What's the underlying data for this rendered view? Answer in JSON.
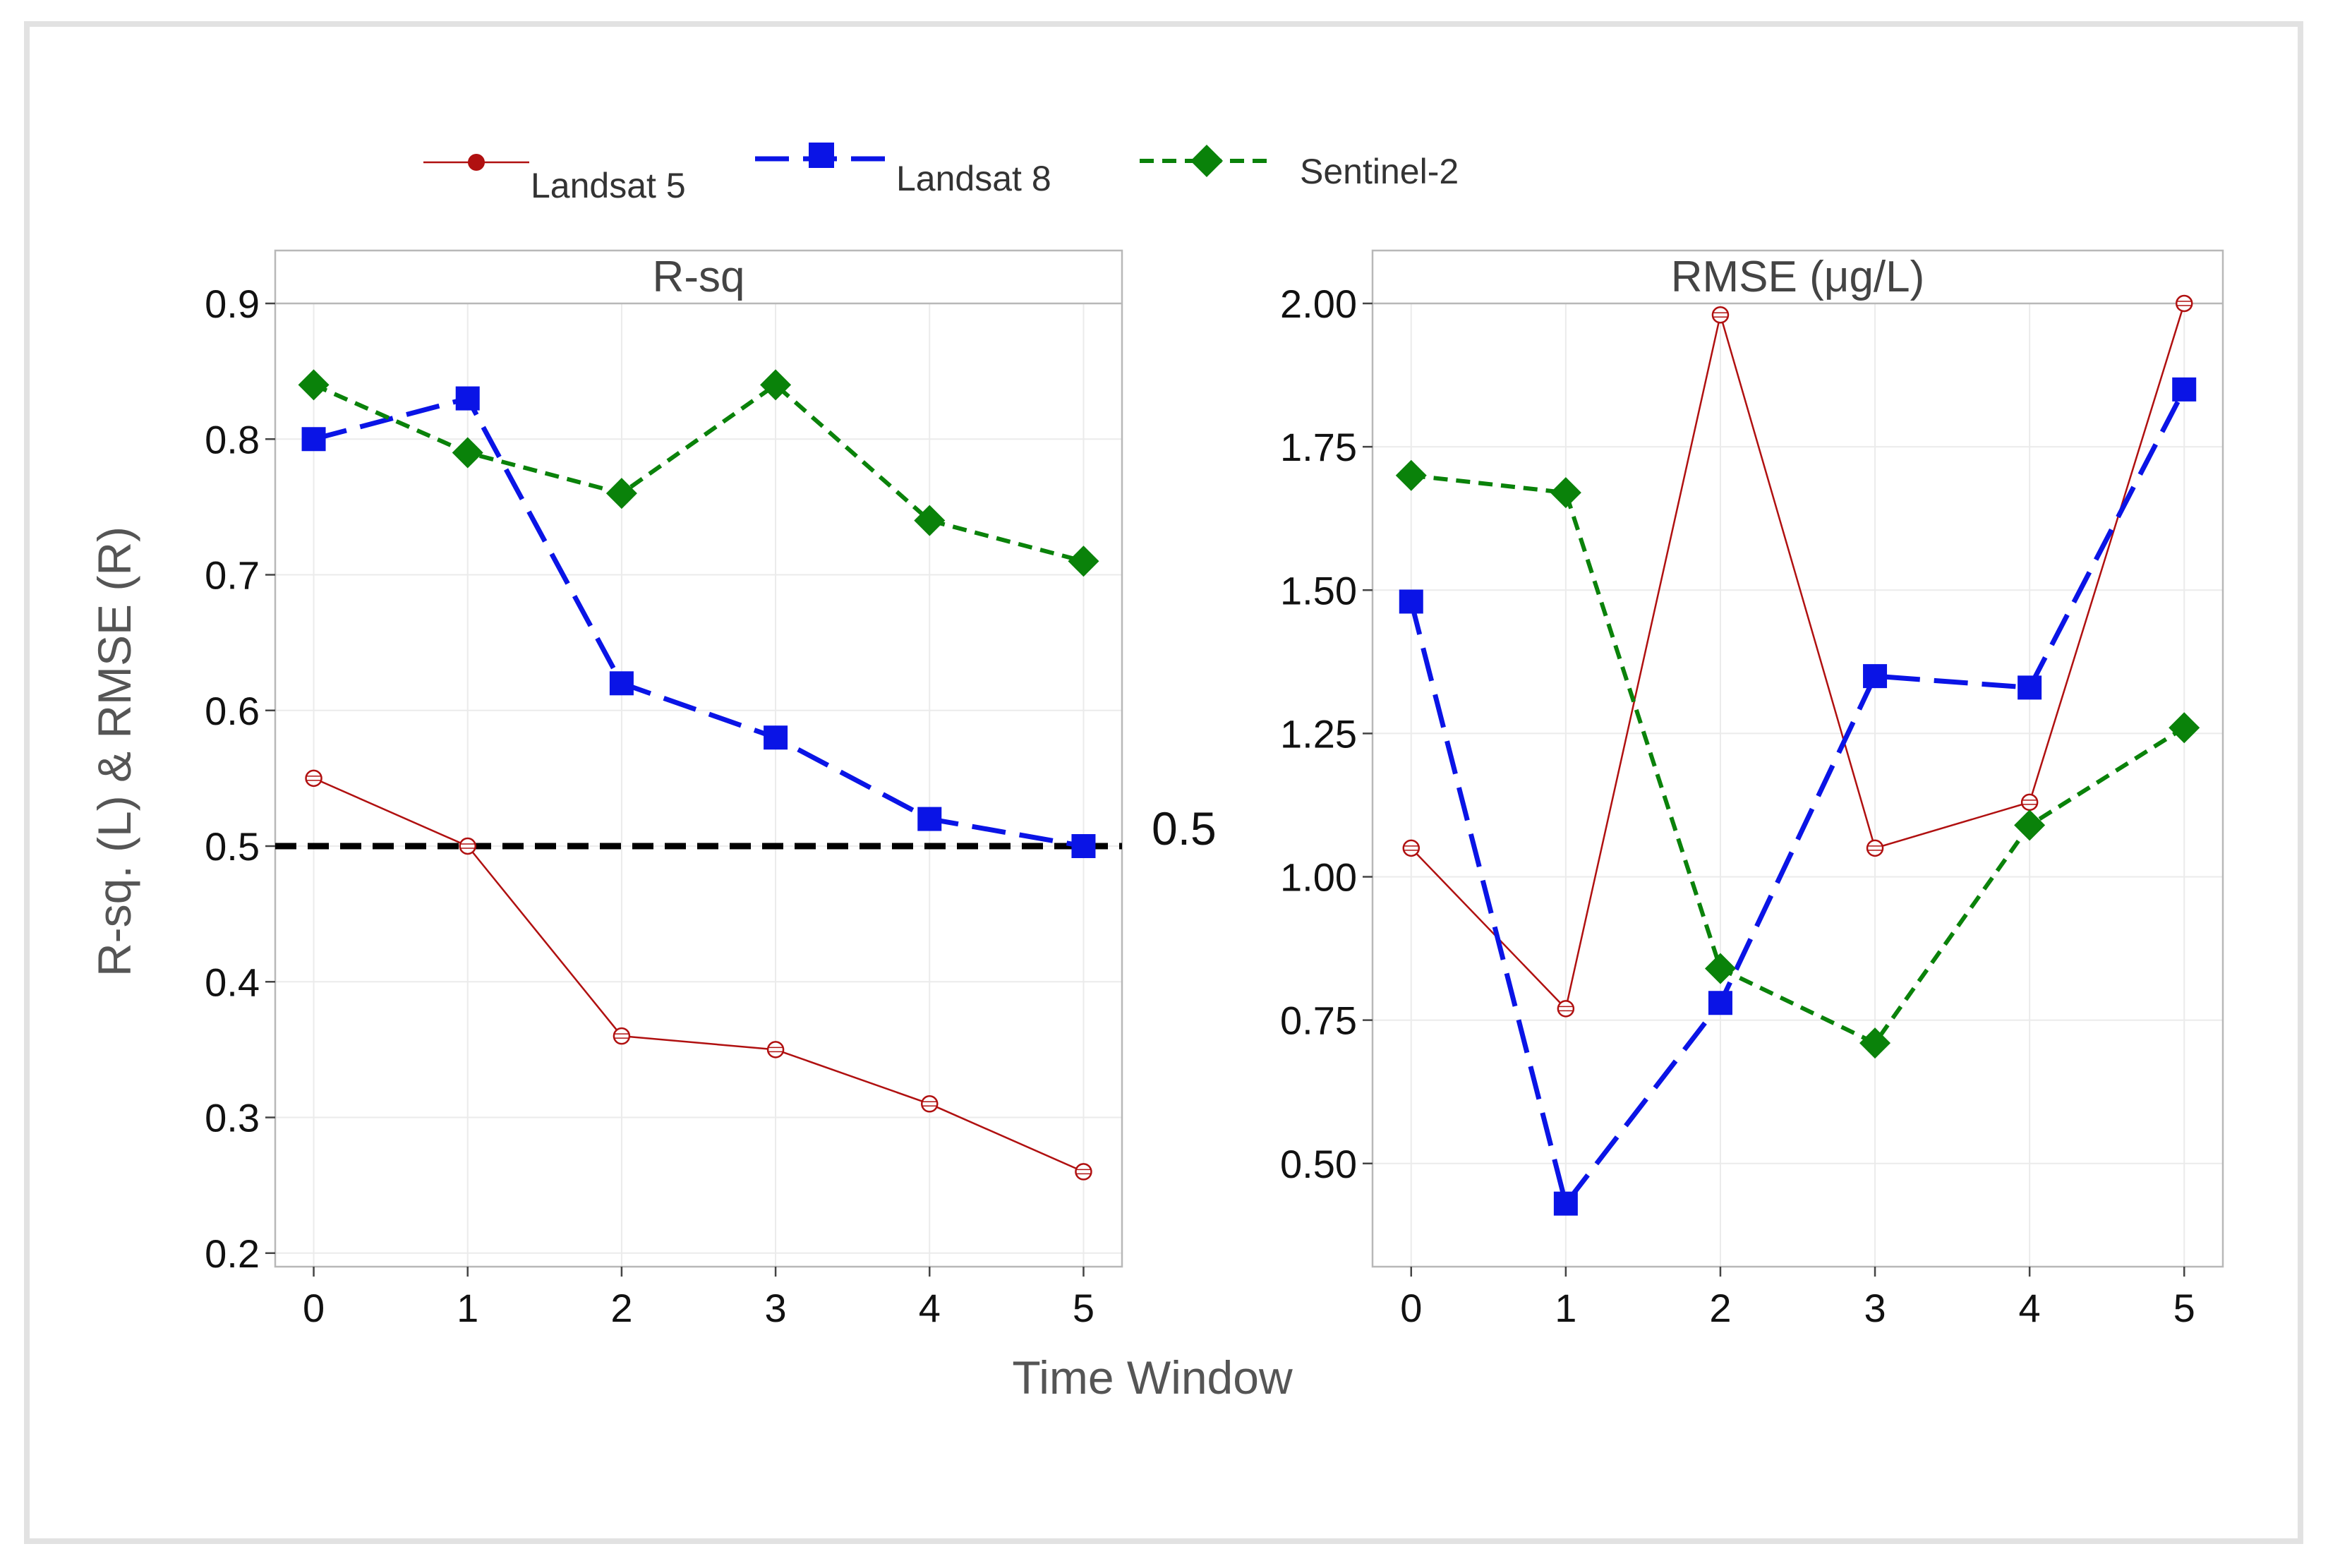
{
  "figure": {
    "x_axis_label": "Time Window",
    "y_axis_label": "R-sq. (L) & RMSE (R)"
  },
  "legend": [
    {
      "name": "Landsat 5",
      "color": "#b01010",
      "marker": "circle"
    },
    {
      "name": "Landsat 8",
      "color": "#0a14e6",
      "marker": "square"
    },
    {
      "name": "Sentinel-2",
      "color": "#0a820a",
      "marker": "diamond"
    }
  ],
  "chart_data": [
    {
      "type": "line",
      "title": "R-sq",
      "xlabel": "Time Window",
      "ylabel": "R-sq. (L) & RMSE (R)",
      "x": [
        0,
        1,
        2,
        3,
        4,
        5
      ],
      "xlim": [
        -0.25,
        5.25
      ],
      "ylim": [
        0.19,
        0.9
      ],
      "yticks": [
        0.2,
        0.3,
        0.4,
        0.5,
        0.6,
        0.7,
        0.8,
        0.9
      ],
      "ytick_labels": [
        "0.2",
        "0.3",
        "0.4",
        "0.5",
        "0.6",
        "0.7",
        "0.8",
        "0.9"
      ],
      "grid": true,
      "series": [
        {
          "name": "Landsat 5",
          "values": [
            0.55,
            0.5,
            0.36,
            0.35,
            0.31,
            0.26
          ]
        },
        {
          "name": "Landsat 8",
          "values": [
            0.8,
            0.83,
            0.62,
            0.58,
            0.52,
            0.5
          ]
        },
        {
          "name": "Sentinel-2",
          "values": [
            0.84,
            0.79,
            0.76,
            0.84,
            0.74,
            0.71
          ]
        }
      ],
      "reference_line": {
        "value": 0.5,
        "label": "0.5",
        "color": "#000000"
      }
    },
    {
      "type": "line",
      "title": "RMSE (μg/L)",
      "xlabel": "Time Window",
      "ylabel": "",
      "x": [
        0,
        1,
        2,
        3,
        4,
        5
      ],
      "xlim": [
        -0.25,
        5.25
      ],
      "ylim": [
        0.32,
        2.0
      ],
      "yticks": [
        0.5,
        0.75,
        1.0,
        1.25,
        1.5,
        1.75,
        2.0
      ],
      "ytick_labels": [
        "0.50",
        "0.75",
        "1.00",
        "1.25",
        "1.50",
        "1.75",
        "2.00"
      ],
      "grid": true,
      "series": [
        {
          "name": "Landsat 5",
          "values": [
            1.05,
            0.77,
            1.98,
            1.05,
            1.13,
            2.0
          ]
        },
        {
          "name": "Landsat 8",
          "values": [
            1.48,
            0.43,
            0.78,
            1.35,
            1.33,
            1.85
          ]
        },
        {
          "name": "Sentinel-2",
          "values": [
            1.7,
            1.67,
            0.84,
            0.71,
            1.09,
            1.26
          ]
        }
      ]
    }
  ]
}
